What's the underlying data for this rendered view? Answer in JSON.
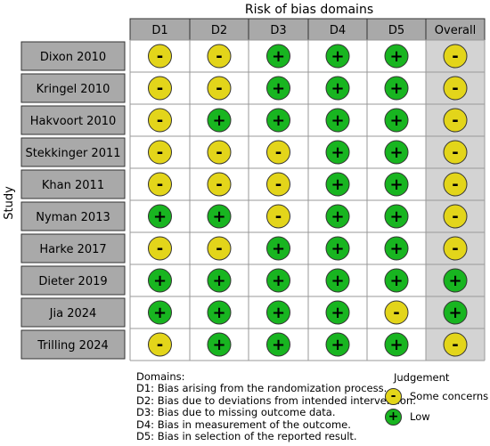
{
  "chart_data": {
    "type": "table",
    "title": "Risk of bias domains",
    "ylabel": "Study",
    "columns": [
      "D1",
      "D2",
      "D3",
      "D4",
      "D5",
      "Overall"
    ],
    "studies": [
      {
        "name": "Dixon 2010",
        "judgements": [
          "Some concerns",
          "Some concerns",
          "Low",
          "Low",
          "Low",
          "Some concerns"
        ]
      },
      {
        "name": "Kringel 2010",
        "judgements": [
          "Some concerns",
          "Some concerns",
          "Low",
          "Low",
          "Low",
          "Some concerns"
        ]
      },
      {
        "name": "Hakvoort 2010",
        "judgements": [
          "Some concerns",
          "Low",
          "Low",
          "Low",
          "Low",
          "Some concerns"
        ]
      },
      {
        "name": "Stekkinger 2011",
        "judgements": [
          "Some concerns",
          "Some concerns",
          "Some concerns",
          "Low",
          "Low",
          "Some concerns"
        ]
      },
      {
        "name": "Khan 2011",
        "judgements": [
          "Some concerns",
          "Some concerns",
          "Some concerns",
          "Low",
          "Low",
          "Some concerns"
        ]
      },
      {
        "name": "Nyman 2013",
        "judgements": [
          "Low",
          "Low",
          "Some concerns",
          "Low",
          "Low",
          "Some concerns"
        ]
      },
      {
        "name": "Harke 2017",
        "judgements": [
          "Some concerns",
          "Some concerns",
          "Low",
          "Low",
          "Low",
          "Some concerns"
        ]
      },
      {
        "name": "Dieter 2019",
        "judgements": [
          "Low",
          "Low",
          "Low",
          "Low",
          "Low",
          "Low"
        ]
      },
      {
        "name": "Jia 2024",
        "judgements": [
          "Low",
          "Low",
          "Low",
          "Low",
          "Some concerns",
          "Low"
        ]
      },
      {
        "name": "Trilling 2024",
        "judgements": [
          "Some concerns",
          "Low",
          "Low",
          "Low",
          "Low",
          "Some concerns"
        ]
      }
    ],
    "symbols": {
      "Some concerns": "-",
      "Low": "+"
    },
    "colors": {
      "Some concerns": "#e3d51a",
      "Low": "#18b520",
      "header": "#a9a9a9",
      "overall_bg": "#d3d3d3",
      "study_bg": "#a9a9a9"
    }
  },
  "legend": {
    "domains_title": "Domains:",
    "domains": [
      "D1: Bias arising from the randomization process.",
      "D2: Bias due to deviations from intended intervention.",
      "D3: Bias due to missing outcome data.",
      "D4: Bias in measurement of the outcome.",
      "D5: Bias in selection of the reported result."
    ],
    "judgement_title": "Judgement",
    "judgement_items": [
      {
        "label": "Some concerns",
        "symbol": "-",
        "color": "#e3d51a"
      },
      {
        "label": "Low",
        "symbol": "+",
        "color": "#18b520"
      }
    ]
  }
}
